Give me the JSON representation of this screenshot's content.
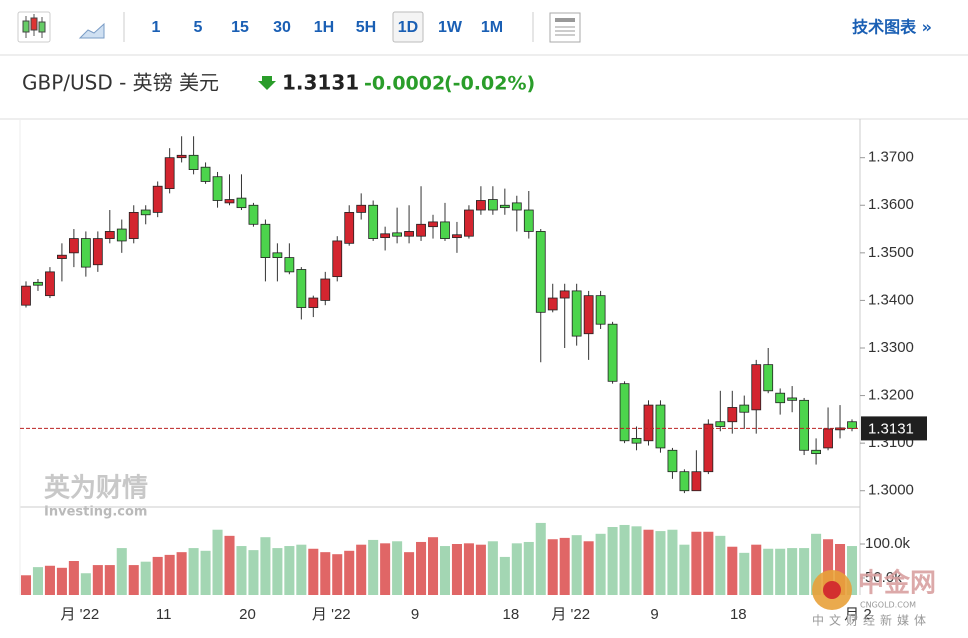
{
  "toolbar": {
    "intervals": [
      "1",
      "5",
      "15",
      "30",
      "1H",
      "5H",
      "1D",
      "1W",
      "1M"
    ],
    "active_index": 6,
    "link": "技术图表 »"
  },
  "header": {
    "symbol": "GBP/USD - 英镑 美元",
    "price": "1.3131",
    "change": "-0.0002",
    "change_percent": "(-0.02%)"
  },
  "watermarks": {
    "brand": "英为财情",
    "brand_sub": "Investing.com",
    "site": "中金网",
    "site_url": "CNGOLD.COM",
    "site_sub": "中文财经新媒体"
  },
  "chart_data": {
    "type": "candlestick",
    "categories": [
      null,
      null,
      null,
      null,
      "月 '22",
      null,
      null,
      null,
      null,
      null,
      null,
      "11",
      null,
      null,
      null,
      null,
      null,
      null,
      "20",
      null,
      null,
      null,
      null,
      null,
      null,
      "月 '22",
      null,
      null,
      null,
      null,
      null,
      null,
      "9",
      null,
      null,
      null,
      null,
      null,
      null,
      null,
      "18",
      null,
      null,
      null,
      null,
      "月 '22",
      null,
      null,
      null,
      null,
      null,
      null,
      "9",
      null,
      null,
      null,
      null,
      null,
      null,
      "18",
      null,
      null,
      null,
      null,
      null,
      null,
      null,
      null,
      null,
      "月 2"
    ],
    "open": [
      1.339,
      1.3438,
      1.341,
      1.3488,
      1.35,
      1.353,
      1.3475,
      1.353,
      1.355,
      1.353,
      1.359,
      1.3585,
      1.3635,
      1.37,
      1.3705,
      1.368,
      1.366,
      1.3605,
      1.3615,
      1.36,
      1.356,
      1.35,
      1.349,
      1.3465,
      1.3385,
      1.34,
      1.345,
      1.352,
      1.3585,
      1.36,
      1.3532,
      1.3542,
      1.3535,
      1.3535,
      1.3555,
      1.3565,
      1.3532,
      1.3535,
      1.359,
      1.3612,
      1.36,
      1.3605,
      1.359,
      1.3545,
      1.338,
      1.3405,
      1.342,
      1.333,
      1.341,
      1.335,
      1.3225,
      1.311,
      1.3105,
      1.318,
      1.3085,
      1.304,
      1.3,
      1.304,
      1.3145,
      1.3145,
      1.318,
      1.317,
      1.3265,
      1.3205,
      1.3195,
      1.319,
      1.3085,
      1.309,
      1.3128,
      1.3145
    ],
    "high": [
      1.344,
      1.3445,
      1.347,
      1.352,
      1.355,
      1.3545,
      1.3545,
      1.359,
      1.357,
      1.36,
      1.36,
      1.365,
      1.372,
      1.3745,
      1.3745,
      1.369,
      1.367,
      1.3665,
      1.3665,
      1.3605,
      1.357,
      1.352,
      1.352,
      1.347,
      1.341,
      1.346,
      1.3535,
      1.36,
      1.3625,
      1.361,
      1.3555,
      1.3595,
      1.36,
      1.364,
      1.358,
      1.3605,
      1.3565,
      1.36,
      1.364,
      1.364,
      1.3635,
      1.362,
      1.363,
      1.355,
      1.3435,
      1.3435,
      1.3435,
      1.342,
      1.342,
      1.3355,
      1.323,
      1.3135,
      1.319,
      1.319,
      1.309,
      1.3045,
      1.3085,
      1.315,
      1.321,
      1.321,
      1.32,
      1.3275,
      1.33,
      1.3215,
      1.322,
      1.3195,
      1.311,
      1.3175,
      1.318,
      1.315
    ],
    "low": [
      1.3385,
      1.342,
      1.3405,
      1.344,
      1.347,
      1.345,
      1.346,
      1.352,
      1.35,
      1.352,
      1.356,
      1.3575,
      1.3625,
      1.369,
      1.3665,
      1.3645,
      1.3595,
      1.36,
      1.359,
      1.3555,
      1.344,
      1.344,
      1.3455,
      1.336,
      1.3365,
      1.339,
      1.344,
      1.3515,
      1.357,
      1.3525,
      1.3505,
      1.352,
      1.352,
      1.3525,
      1.353,
      1.3525,
      1.35,
      1.353,
      1.358,
      1.358,
      1.358,
      1.3545,
      1.353,
      1.327,
      1.3375,
      1.33,
      1.3305,
      1.3275,
      1.334,
      1.3225,
      1.31,
      1.3085,
      1.3095,
      1.308,
      1.3025,
      1.2995,
      1.3,
      1.3035,
      1.3125,
      1.312,
      1.313,
      1.312,
      1.3205,
      1.316,
      1.3165,
      1.3075,
      1.3055,
      1.3085,
      1.311,
      1.3125
    ],
    "close": [
      1.343,
      1.3432,
      1.346,
      1.3495,
      1.353,
      1.347,
      1.353,
      1.3545,
      1.3525,
      1.3585,
      1.358,
      1.364,
      1.37,
      1.3705,
      1.3675,
      1.365,
      1.361,
      1.3612,
      1.3595,
      1.356,
      1.349,
      1.349,
      1.346,
      1.3385,
      1.3405,
      1.3445,
      1.3525,
      1.3585,
      1.36,
      1.353,
      1.354,
      1.3535,
      1.3545,
      1.356,
      1.3565,
      1.353,
      1.3538,
      1.359,
      1.361,
      1.359,
      1.3595,
      1.359,
      1.3545,
      1.3375,
      1.3405,
      1.342,
      1.3325,
      1.341,
      1.335,
      1.323,
      1.3105,
      1.31,
      1.318,
      1.309,
      1.304,
      1.3,
      1.304,
      1.314,
      1.3135,
      1.3175,
      1.3165,
      1.3265,
      1.321,
      1.3185,
      1.319,
      1.3085,
      1.3078,
      1.313,
      1.3132,
      1.3131
    ],
    "volume": [
      54000,
      66000,
      68000,
      65000,
      75000,
      57000,
      69000,
      69000,
      94000,
      69000,
      74000,
      81000,
      84000,
      88000,
      94000,
      90000,
      121000,
      112000,
      97000,
      91000,
      110000,
      94000,
      97000,
      99000,
      93000,
      88000,
      85000,
      90000,
      99000,
      106000,
      101000,
      104000,
      88000,
      103000,
      110000,
      97000,
      100000,
      101000,
      99000,
      104000,
      81000,
      101000,
      103000,
      131000,
      107000,
      109000,
      113000,
      104000,
      115000,
      125000,
      128000,
      126000,
      121000,
      119000,
      121000,
      99000,
      118000,
      118000,
      112000,
      96000,
      87000,
      99000,
      93000,
      93000,
      94000,
      94000,
      115000,
      107000,
      100000,
      97000
    ],
    "up_color": "#d3252f",
    "down_color": "#4cd44c",
    "up_volume_color": "#e06666",
    "down_volume_color": "#a3d6b3",
    "ylim": [
      1.297,
      1.3775
    ],
    "yticks": [
      {
        "value": 1.3,
        "label": "1.3000"
      },
      {
        "value": 1.31,
        "label": "1.3100"
      },
      {
        "value": 1.32,
        "label": "1.3200"
      },
      {
        "value": 1.33,
        "label": "1.3300"
      },
      {
        "value": 1.34,
        "label": "1.3400"
      },
      {
        "value": 1.35,
        "label": "1.3500"
      },
      {
        "value": 1.36,
        "label": "1.3600"
      },
      {
        "value": 1.37,
        "label": "1.3700"
      }
    ],
    "volume_ylim": [
      25000,
      150000
    ],
    "volume_yticks": [
      {
        "value": 50000,
        "label": "50.0k"
      },
      {
        "value": 100000,
        "label": "100.0k"
      }
    ],
    "last_price": {
      "value": 1.3131,
      "label": "1.3131"
    },
    "grid": false
  }
}
